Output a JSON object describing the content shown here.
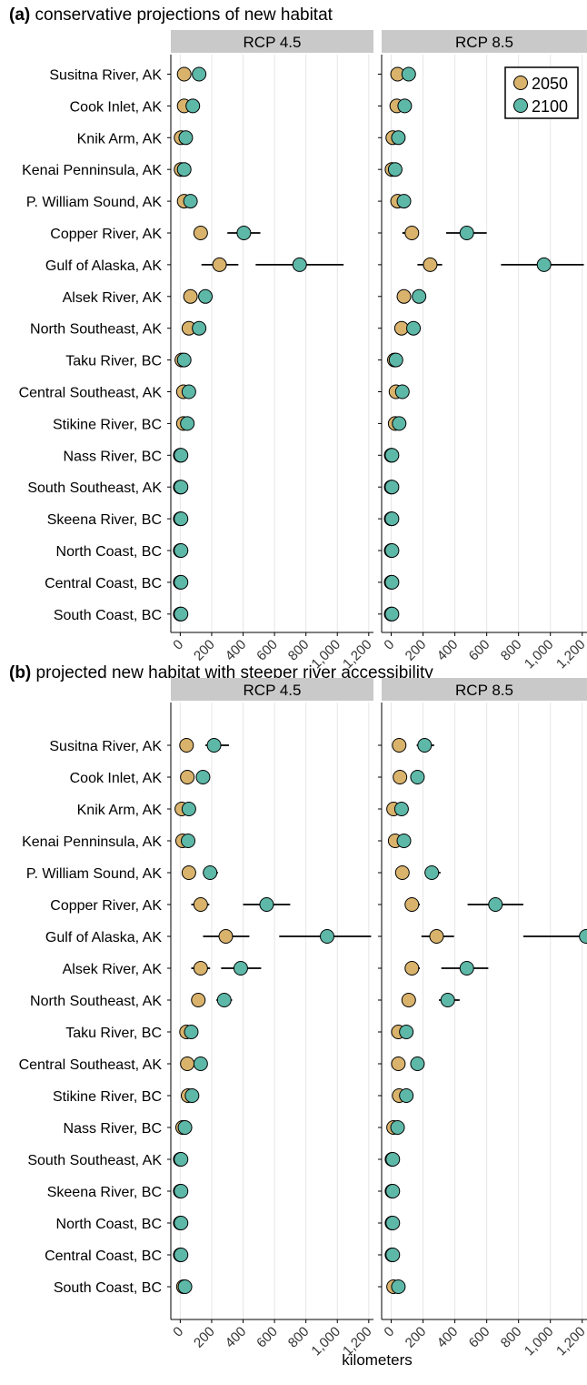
{
  "colors": {
    "y2050": "#d9b36c",
    "y2100": "#5db8a8",
    "strip": "#c9c9c9"
  },
  "xlabel": "kilometers",
  "legend": {
    "title": "",
    "entries": [
      "2050",
      "2100"
    ],
    "placement": "top-right"
  },
  "chart_data": [
    {
      "type": "scatter",
      "panel": "a",
      "tag": "(a)",
      "title": "conservative projections of new habitat",
      "facets": [
        "RCP 4.5",
        "RCP 8.5"
      ],
      "xlim": [
        -60,
        1230
      ],
      "xticks": [
        0,
        200,
        400,
        600,
        800,
        1000,
        1200
      ],
      "xtick_labels": [
        "0",
        "200",
        "400",
        "600",
        "800",
        "1,000",
        "1,200"
      ],
      "categories": [
        "Susitna River, AK",
        "Cook Inlet, AK",
        "Knik Arm, AK",
        "Kenai Penninsula, AK",
        "P. William Sound, AK",
        "Copper River, AK",
        "Gulf of Alaska, AK",
        "Alsek River, AK",
        "North Southeast, AK",
        "Taku River, BC",
        "Central Southeast, AK",
        "Stikine River, BC",
        "Nass River, BC",
        "South Southeast, AK",
        "Skeena River, BC",
        "North Coast, BC",
        "Central Coast, BC",
        "South Coast, BC"
      ],
      "series": [
        {
          "facet": "RCP 4.5",
          "year": "2050",
          "values": [
            25,
            25,
            5,
            5,
            25,
            130,
            250,
            65,
            55,
            10,
            20,
            20,
            0,
            0,
            0,
            0,
            0,
            0
          ],
          "lo": [
            null,
            null,
            null,
            null,
            null,
            null,
            135,
            null,
            null,
            null,
            null,
            null,
            null,
            null,
            null,
            null,
            null,
            null
          ],
          "hi": [
            null,
            null,
            null,
            null,
            null,
            null,
            370,
            null,
            null,
            null,
            null,
            null,
            null,
            null,
            null,
            null,
            null,
            null
          ]
        },
        {
          "facet": "RCP 4.5",
          "year": "2100",
          "values": [
            120,
            80,
            35,
            25,
            65,
            405,
            760,
            160,
            120,
            25,
            55,
            45,
            5,
            5,
            5,
            5,
            5,
            5
          ],
          "lo": [
            80,
            null,
            null,
            null,
            null,
            300,
            480,
            null,
            null,
            null,
            null,
            null,
            null,
            null,
            null,
            null,
            null,
            null
          ],
          "hi": [
            165,
            null,
            null,
            null,
            null,
            510,
            1040,
            null,
            null,
            null,
            null,
            null,
            null,
            null,
            null,
            null,
            null,
            null
          ]
        },
        {
          "facet": "RCP 8.5",
          "year": "2050",
          "values": [
            40,
            35,
            10,
            5,
            40,
            130,
            245,
            80,
            65,
            20,
            30,
            25,
            0,
            0,
            0,
            0,
            0,
            0
          ],
          "lo": [
            null,
            null,
            null,
            null,
            null,
            70,
            165,
            null,
            null,
            null,
            null,
            null,
            null,
            null,
            null,
            null,
            null,
            null
          ],
          "hi": [
            null,
            null,
            null,
            null,
            null,
            null,
            320,
            null,
            null,
            null,
            null,
            null,
            null,
            null,
            null,
            null,
            null,
            null
          ]
        },
        {
          "facet": "RCP 8.5",
          "year": "2100",
          "values": [
            110,
            85,
            45,
            25,
            80,
            475,
            960,
            175,
            140,
            30,
            70,
            50,
            5,
            5,
            5,
            5,
            5,
            5
          ],
          "lo": [
            null,
            null,
            null,
            null,
            null,
            345,
            690,
            null,
            null,
            null,
            null,
            null,
            null,
            null,
            null,
            null,
            null,
            null
          ],
          "hi": [
            null,
            null,
            null,
            null,
            null,
            600,
            1210,
            null,
            null,
            null,
            null,
            null,
            null,
            null,
            null,
            null,
            null,
            null
          ]
        }
      ]
    },
    {
      "type": "scatter",
      "panel": "b",
      "tag": "(b)",
      "title": "projected new habitat with steeper river accessibility",
      "facets": [
        "RCP 4.5",
        "RCP 8.5"
      ],
      "xlim": [
        -60,
        1230
      ],
      "xticks": [
        0,
        200,
        400,
        600,
        800,
        1000,
        1200
      ],
      "xtick_labels": [
        "0",
        "200",
        "400",
        "600",
        "800",
        "1,000",
        "1,200"
      ],
      "categories": [
        "Susitna River, AK",
        "Cook Inlet, AK",
        "Knik Arm, AK",
        "Kenai Penninsula, AK",
        "P. William Sound, AK",
        "Copper River, AK",
        "Gulf of Alaska, AK",
        "Alsek River, AK",
        "North Southeast, AK",
        "Taku River, BC",
        "Central Southeast, AK",
        "Stikine River, BC",
        "Nass River, BC",
        "South Southeast, AK",
        "Skeena River, BC",
        "North Coast, BC",
        "Central Coast, BC",
        "South Coast, BC"
      ],
      "series": [
        {
          "facet": "RCP 4.5",
          "year": "2050",
          "values": [
            40,
            45,
            10,
            15,
            55,
            130,
            290,
            130,
            115,
            40,
            45,
            50,
            15,
            0,
            0,
            0,
            0,
            20
          ],
          "lo": [
            null,
            null,
            null,
            null,
            null,
            70,
            145,
            70,
            null,
            null,
            null,
            null,
            null,
            null,
            null,
            null,
            null,
            null
          ],
          "hi": [
            null,
            null,
            null,
            null,
            null,
            185,
            440,
            190,
            null,
            null,
            null,
            null,
            null,
            null,
            null,
            null,
            null,
            null
          ]
        },
        {
          "facet": "RCP 4.5",
          "year": "2100",
          "values": [
            215,
            145,
            55,
            50,
            190,
            550,
            935,
            385,
            280,
            70,
            130,
            75,
            30,
            5,
            5,
            5,
            5,
            30
          ],
          "lo": [
            160,
            null,
            null,
            null,
            150,
            400,
            630,
            260,
            230,
            null,
            null,
            null,
            null,
            null,
            null,
            null,
            null,
            null
          ],
          "hi": [
            310,
            null,
            null,
            null,
            240,
            700,
            1215,
            515,
            330,
            null,
            null,
            null,
            null,
            null,
            null,
            null,
            null,
            null
          ]
        },
        {
          "facet": "RCP 8.5",
          "year": "2050",
          "values": [
            50,
            55,
            15,
            25,
            70,
            130,
            285,
            130,
            110,
            45,
            45,
            50,
            15,
            5,
            5,
            5,
            5,
            15
          ],
          "lo": [
            null,
            null,
            null,
            null,
            null,
            95,
            190,
            95,
            null,
            null,
            null,
            null,
            null,
            null,
            null,
            null,
            null,
            null
          ],
          "hi": [
            null,
            null,
            null,
            null,
            null,
            180,
            395,
            180,
            null,
            null,
            null,
            null,
            null,
            null,
            null,
            null,
            null,
            null
          ]
        },
        {
          "facet": "RCP 8.5",
          "year": "2100",
          "values": [
            210,
            165,
            65,
            80,
            255,
            655,
            1225,
            475,
            355,
            95,
            165,
            95,
            40,
            10,
            10,
            10,
            10,
            45
          ],
          "lo": [
            160,
            null,
            null,
            null,
            210,
            480,
            830,
            315,
            300,
            null,
            null,
            null,
            null,
            null,
            null,
            null,
            null,
            null
          ],
          "hi": [
            270,
            null,
            null,
            null,
            310,
            830,
            1250,
            610,
            430,
            null,
            null,
            null,
            null,
            null,
            null,
            null,
            null,
            null
          ]
        }
      ]
    }
  ]
}
